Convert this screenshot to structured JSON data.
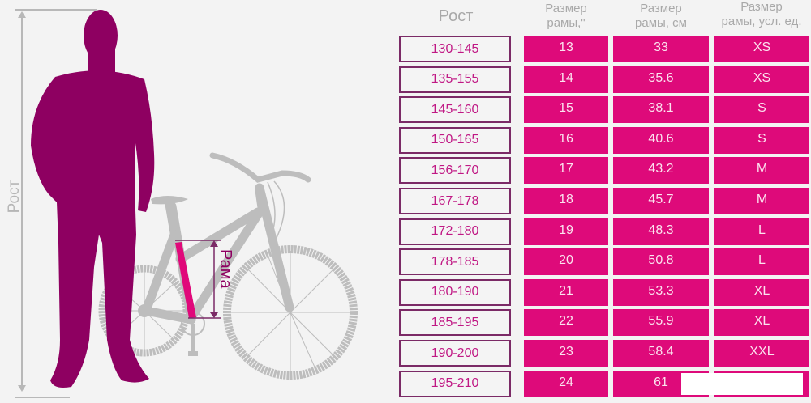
{
  "illustration": {
    "height_axis_label": "Рост",
    "frame_label": "Рама",
    "person_color": "#8e0061",
    "bike_color": "#bdbdbd",
    "frame_highlight_color": "#e0087a"
  },
  "table": {
    "headers": {
      "growth": "Рост",
      "frame_inch_line1": "Размер",
      "frame_inch_line2": "рамы,\"",
      "frame_cm_line1": "Размер",
      "frame_cm_line2": "рамы, см",
      "frame_unit_line1": "Размер",
      "frame_unit_line2": "рамы, усл. ед."
    },
    "rows": [
      {
        "growth": "130-145",
        "inch": "13",
        "cm": "33",
        "unit": "XS"
      },
      {
        "growth": "135-155",
        "inch": "14",
        "cm": "35.6",
        "unit": "XS"
      },
      {
        "growth": "145-160",
        "inch": "15",
        "cm": "38.1",
        "unit": "S"
      },
      {
        "growth": "150-165",
        "inch": "16",
        "cm": "40.6",
        "unit": "S"
      },
      {
        "growth": "156-170",
        "inch": "17",
        "cm": "43.2",
        "unit": "M"
      },
      {
        "growth": "167-178",
        "inch": "18",
        "cm": "45.7",
        "unit": "M"
      },
      {
        "growth": "172-180",
        "inch": "19",
        "cm": "48.3",
        "unit": "L"
      },
      {
        "growth": "178-185",
        "inch": "20",
        "cm": "50.8",
        "unit": "L"
      },
      {
        "growth": "180-190",
        "inch": "21",
        "cm": "53.3",
        "unit": "XL"
      },
      {
        "growth": "185-195",
        "inch": "22",
        "cm": "55.9",
        "unit": "XL"
      },
      {
        "growth": "190-200",
        "inch": "23",
        "cm": "58.4",
        "unit": "XXL"
      },
      {
        "growth": "195-210",
        "inch": "24",
        "cm": "61",
        "unit": ""
      }
    ],
    "colors": {
      "cell_magenta": "#de0a7a",
      "growth_border": "#7b2a66",
      "growth_text": "#c01884",
      "header_text": "#a9a9a9"
    }
  }
}
